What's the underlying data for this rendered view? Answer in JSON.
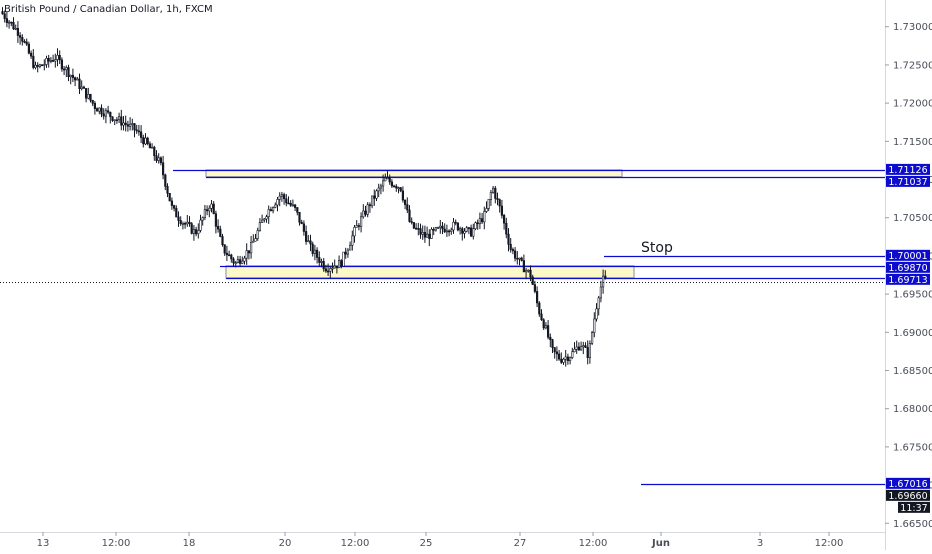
{
  "header": {
    "symbol_title": "British Pound / Canadian Dollar, 1h, FXCM"
  },
  "colors": {
    "background": "#ffffff",
    "candle": "#131722",
    "level_line": "#0c0ccf",
    "zone_fill": "#fdf8c8",
    "zone_border": "#8c8ca6",
    "price_dotted": "#131722",
    "axis_text": "#4a4e59",
    "label_blue": "#0c0ccf",
    "label_black": "#131722"
  },
  "chart_data": {
    "type": "candlestick",
    "symbol": "British Pound / Canadian Dollar",
    "timeframe": "1h",
    "source": "FXCM",
    "ylim": [
      1.6615,
      1.7335
    ],
    "yticks": [
      "1.73000",
      "1.72500",
      "1.72000",
      "1.71500",
      "1.71000",
      "1.70500",
      "1.70000",
      "1.69500",
      "1.69000",
      "1.68500",
      "1.68000",
      "1.67500",
      "1.67000",
      "1.66500"
    ],
    "xticks": [
      "13",
      "12:00",
      "18",
      "20",
      "12:00",
      "25",
      "27",
      "12:00",
      "Jun",
      "3",
      "12:00"
    ],
    "price_path": [
      [
        0,
        1.732
      ],
      [
        20,
        1.729
      ],
      [
        35,
        1.7245
      ],
      [
        55,
        1.726
      ],
      [
        75,
        1.723
      ],
      [
        95,
        1.7195
      ],
      [
        115,
        1.718
      ],
      [
        135,
        1.7165
      ],
      [
        150,
        1.714
      ],
      [
        160,
        1.712
      ],
      [
        172,
        1.706
      ],
      [
        182,
        1.7045
      ],
      [
        195,
        1.703
      ],
      [
        210,
        1.707
      ],
      [
        222,
        1.701
      ],
      [
        235,
        1.699
      ],
      [
        250,
        1.701
      ],
      [
        265,
        1.7055
      ],
      [
        280,
        1.708
      ],
      [
        295,
        1.706
      ],
      [
        310,
        1.701
      ],
      [
        325,
        1.6985
      ],
      [
        340,
        1.699
      ],
      [
        355,
        1.7035
      ],
      [
        370,
        1.707
      ],
      [
        385,
        1.71
      ],
      [
        400,
        1.709
      ],
      [
        410,
        1.704
      ],
      [
        425,
        1.7025
      ],
      [
        440,
        1.7035
      ],
      [
        455,
        1.704
      ],
      [
        470,
        1.703
      ],
      [
        485,
        1.7055
      ],
      [
        492,
        1.709
      ],
      [
        500,
        1.706
      ],
      [
        510,
        1.701
      ],
      [
        520,
        1.699
      ],
      [
        530,
        1.6975
      ],
      [
        538,
        1.693
      ],
      [
        545,
        1.6905
      ],
      [
        552,
        1.6875
      ],
      [
        560,
        1.6865
      ],
      [
        570,
        1.687
      ],
      [
        580,
        1.6885
      ],
      [
        588,
        1.687
      ],
      [
        594,
        1.692
      ],
      [
        598,
        1.695
      ],
      [
        603,
        1.697
      ],
      [
        606,
        1.6966
      ]
    ],
    "levels": [
      {
        "price_label": "1.71126",
        "price": 1.71126,
        "label_color": "blue"
      },
      {
        "price_label": "1.71037",
        "price": 1.71037,
        "label_color": "blue"
      },
      {
        "price_label": "1.70001",
        "price": 1.70001,
        "label_color": "blue",
        "annotation": "Stop"
      },
      {
        "price_label": "1.69870",
        "price": 1.6987,
        "label_color": "blue"
      },
      {
        "price_label": "1.69713",
        "price": 1.69713,
        "label_color": "blue"
      },
      {
        "price_label": "1.67016",
        "price": 1.67016,
        "label_color": "blue"
      }
    ],
    "zones": [
      {
        "top": 1.71126,
        "bottom": 1.71037
      },
      {
        "top": 1.6987,
        "bottom": 1.69713
      }
    ],
    "current_price": {
      "price_label": "1.69660",
      "price": 1.6966,
      "countdown": "11:37"
    },
    "annotations": [
      "Stop"
    ]
  }
}
